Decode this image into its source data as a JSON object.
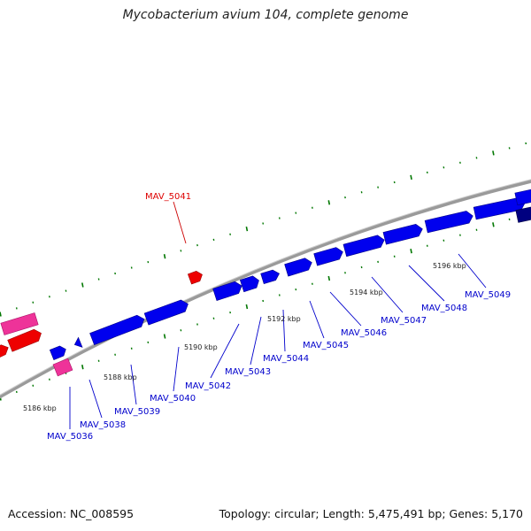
{
  "title": "Mycobacterium avium 104, complete genome",
  "footer": {
    "accession": "Accession: NC_008595",
    "summary": "Topology: circular; Length: 5,475,491 bp; Genes: 5,170"
  },
  "colors": {
    "backbone": "#888888",
    "forward_gene": "#0000ee",
    "forward_gene_dark": "#000080",
    "reverse_gene_red": "#ee0000",
    "reverse_gene_pink": "#ee3399",
    "tick": "#007700",
    "label_reverse": "#dd0000",
    "label_forward": "#0000cc"
  },
  "scale_labels": [
    "5186 kbp",
    "5188 kbp",
    "5190 kbp",
    "5192 kbp",
    "5194 kbp",
    "5196 kbp"
  ],
  "reverse_gene_labels": [
    "MAV_5041"
  ],
  "forward_gene_labels": [
    "MAV_5036",
    "MAV_5038",
    "MAV_5039",
    "MAV_5040",
    "MAV_5042",
    "MAV_5043",
    "MAV_5044",
    "MAV_5045",
    "MAV_5046",
    "MAV_5047",
    "MAV_5048",
    "MAV_5049"
  ]
}
